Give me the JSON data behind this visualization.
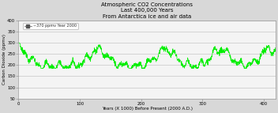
{
  "title_line1": "Atmospheric CO2 Concentrations",
  "title_line2": "Last 400,000 Years",
  "title_line3": "From Antarctica ice and air data",
  "xlabel": "Years (X 1000) Before Present (2000 A.D.)",
  "ylabel": "Carbon Dioxide (ppmv)",
  "xlim": [
    0,
    420
  ],
  "ylim": [
    50,
    400
  ],
  "yticks": [
    50,
    100,
    150,
    200,
    250,
    300,
    350,
    400
  ],
  "xticks": [
    0,
    100,
    200,
    300,
    400
  ],
  "line_color": "#00ee00",
  "legend_label": "~370 ppmv Year 2000",
  "bg_color": "#d8d8d8",
  "plot_bg_color": "#f4f4f4",
  "title_fontsize": 5.0,
  "axis_fontsize": 4.0,
  "tick_fontsize": 3.8
}
